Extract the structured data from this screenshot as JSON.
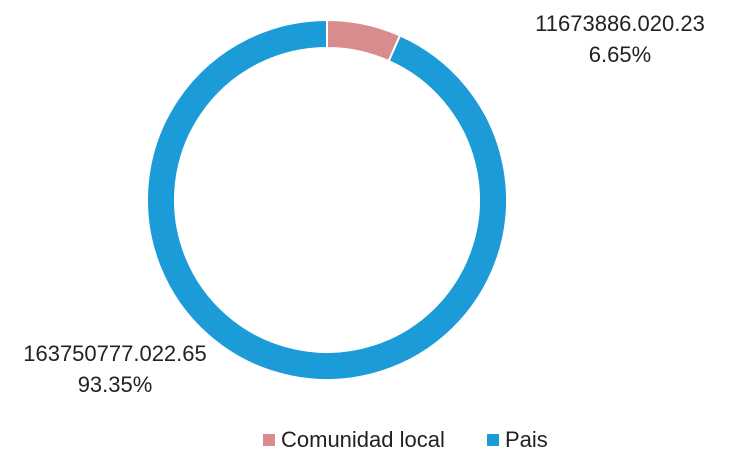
{
  "chart_data": {
    "type": "donut",
    "categories": [
      "Comunidad local",
      "Pais"
    ],
    "values": [
      6.65,
      93.35
    ],
    "value_labels": [
      "6.65%",
      "93.35%"
    ],
    "amount_labels": [
      "11673886.020.23",
      "163750777.022.65"
    ],
    "colors": [
      "#d98c8e",
      "#1b9bd7"
    ],
    "legend": "bottom"
  }
}
